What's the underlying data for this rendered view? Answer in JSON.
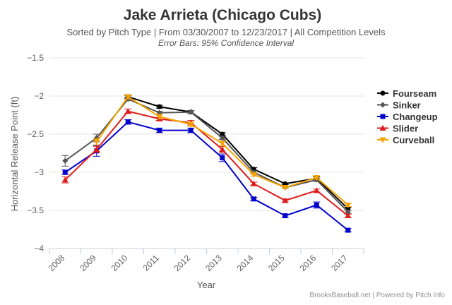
{
  "chart_data": {
    "type": "line",
    "title": "Jake Arrieta (Chicago Cubs)",
    "subtitle": "Sorted by Pitch Type | From 03/30/2007 to 12/23/2017 | All Competition Levels",
    "subtitle2": "Error Bars: 95% Confidence Interval",
    "xlabel": "Year",
    "ylabel": "Horizontal Release Point (ft)",
    "credit": "BrooksBaseball.net | Powered by Pitch Info",
    "categories": [
      "2008",
      "2009",
      "2010",
      "2011",
      "2012",
      "2013",
      "2014",
      "2015",
      "2016",
      "2017"
    ],
    "ylim": [
      -4,
      -1.5
    ],
    "yticks": [
      -1.5,
      -2,
      -2.5,
      -3,
      -3.5,
      -4
    ],
    "ytick_labels": [
      "−1.5",
      "−2",
      "−2.5",
      "−3",
      "−3.5",
      "−4"
    ],
    "legend_position": "right",
    "series": [
      {
        "name": "Fourseam",
        "color": "#000000",
        "marker": "circle",
        "values": [
          null,
          null,
          -2.01,
          -2.14,
          -2.21,
          -2.5,
          -2.96,
          -3.15,
          -3.08,
          -3.48
        ],
        "error": [
          0,
          0,
          0.02,
          0.02,
          0.02,
          0.02,
          0.02,
          0.01,
          0.02,
          0.02
        ]
      },
      {
        "name": "Sinker",
        "color": "#555555",
        "marker": "diamond",
        "values": [
          -2.85,
          -2.55,
          -2.04,
          -2.22,
          -2.21,
          -2.55,
          -3.0,
          -3.2,
          -3.1,
          -3.52
        ],
        "error": [
          0.07,
          0.05,
          0.02,
          0.02,
          0.02,
          0.02,
          0.02,
          0.01,
          0.02,
          0.02
        ]
      },
      {
        "name": "Changeup",
        "color": "#0000cc",
        "marker": "square",
        "values": [
          -3.0,
          -2.72,
          -2.34,
          -2.45,
          -2.45,
          -2.81,
          -3.35,
          -3.57,
          -3.43,
          -3.76
        ],
        "error": [
          0.03,
          0.07,
          0.03,
          0.03,
          0.03,
          0.05,
          0.02,
          0.02,
          0.04,
          0.02
        ]
      },
      {
        "name": "Slider",
        "color": "#e01b1b",
        "marker": "triangle",
        "values": [
          -3.1,
          -2.7,
          -2.2,
          -2.3,
          -2.35,
          -2.7,
          -3.15,
          -3.37,
          -3.24,
          -3.57
        ],
        "error": [
          0.04,
          0.04,
          0.03,
          0.02,
          0.03,
          0.04,
          0.02,
          0.02,
          0.02,
          0.02
        ]
      },
      {
        "name": "Curveball",
        "color": "#f5a300",
        "marker": "triangle-down",
        "values": [
          null,
          -2.6,
          -2.01,
          -2.27,
          -2.37,
          -2.62,
          -3.03,
          -3.2,
          -3.07,
          -3.43
        ],
        "error": [
          0,
          0.04,
          0.03,
          0.03,
          0.03,
          0.03,
          0.02,
          0.01,
          0.02,
          0.02
        ]
      }
    ]
  }
}
